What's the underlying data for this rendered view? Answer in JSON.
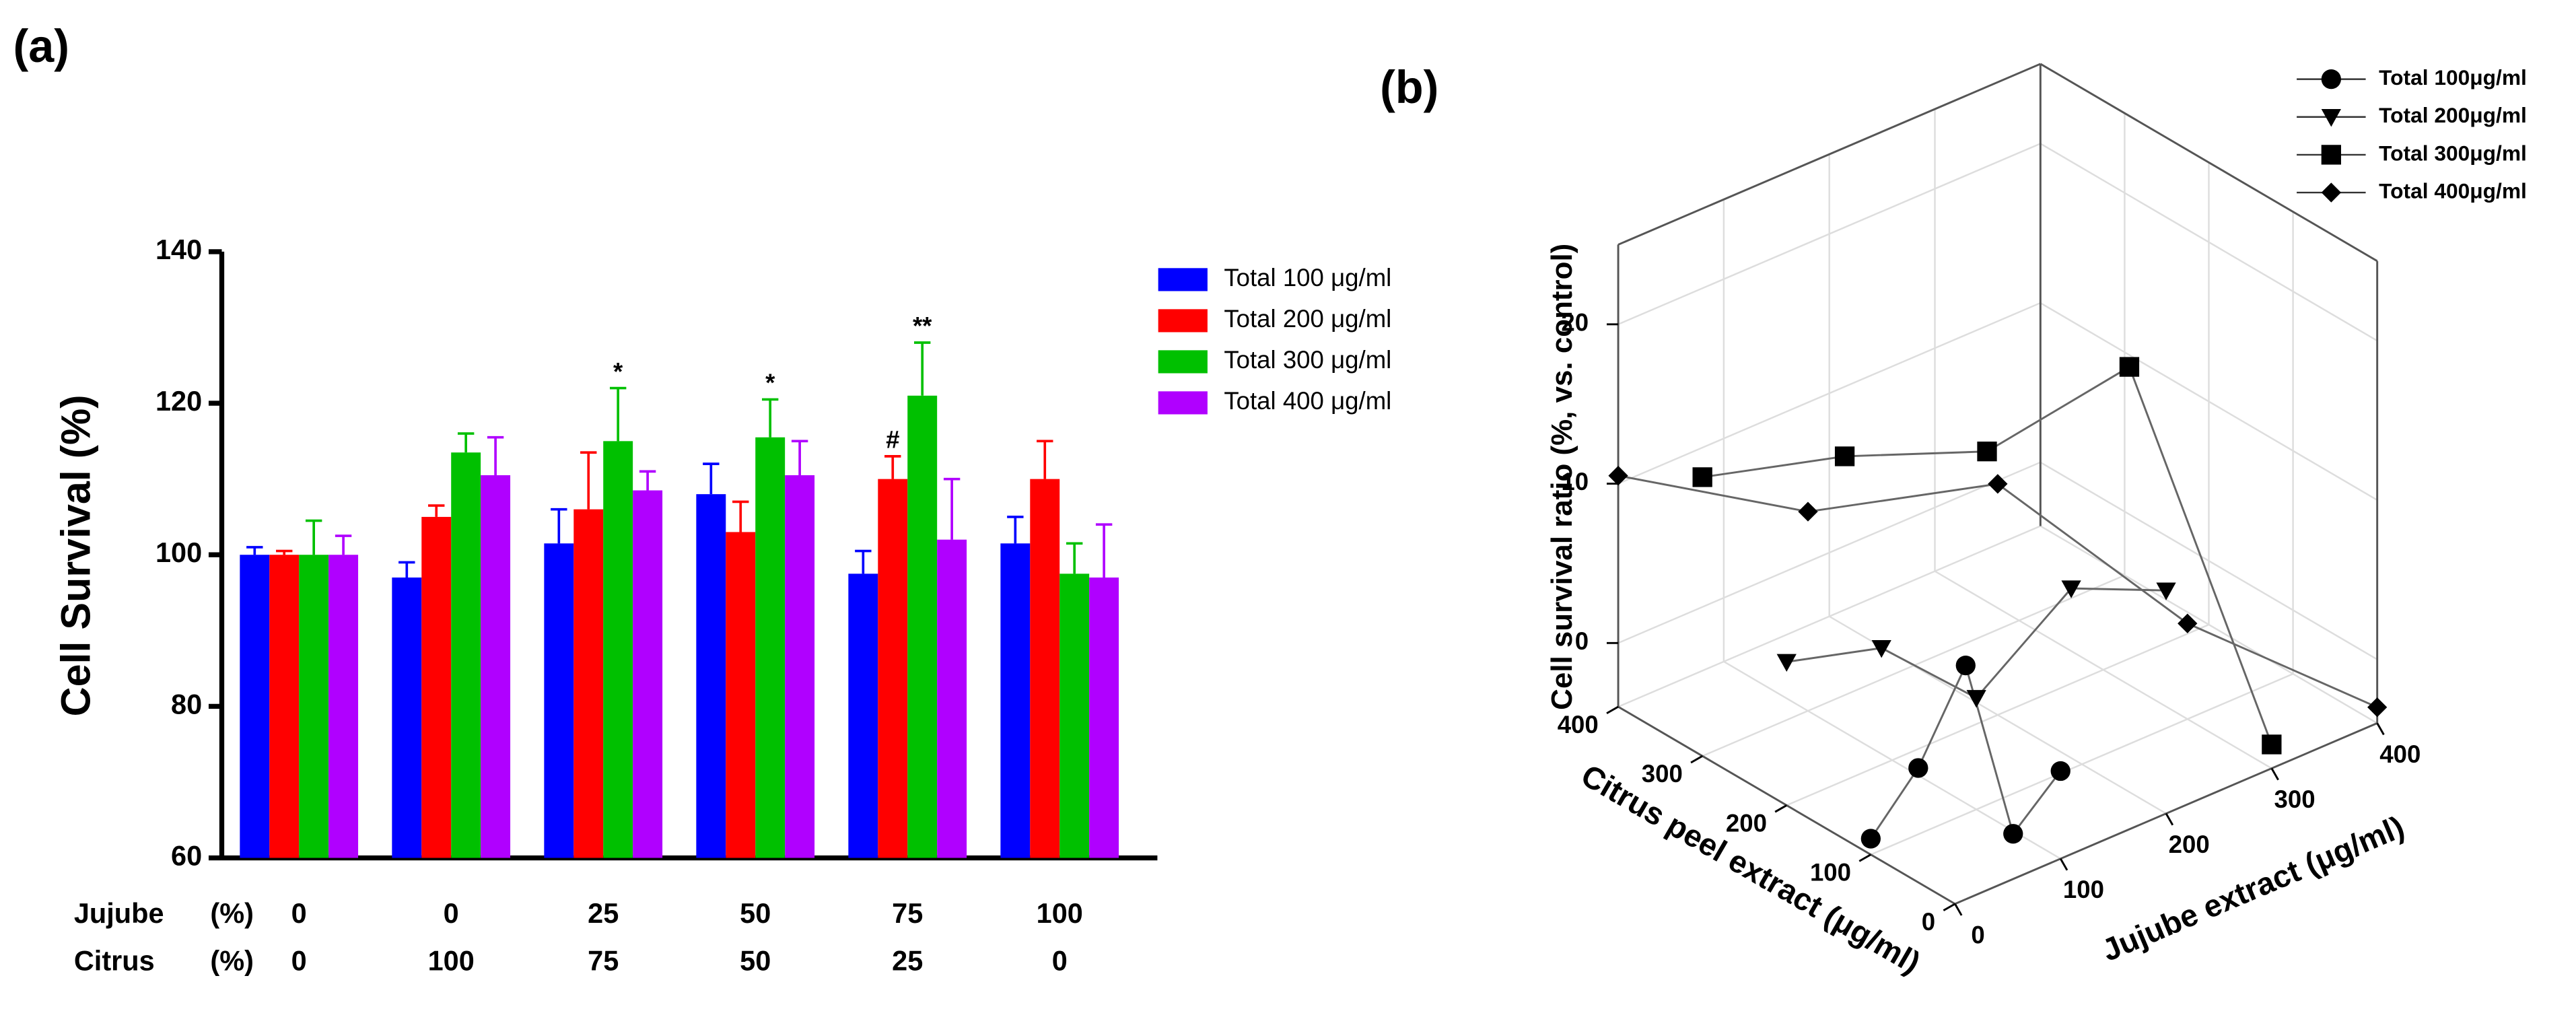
{
  "chart_data": [
    {
      "type": "bar",
      "panel": "(a)",
      "ylabel": "Cell Survival (%)",
      "ylim": [
        60,
        140
      ],
      "yticks": [
        60,
        80,
        100,
        120,
        140
      ],
      "category_rows": [
        {
          "name": "Jujube",
          "unit": "(%)",
          "labels": [
            0,
            0,
            25,
            50,
            75,
            100
          ]
        },
        {
          "name": "Citrus",
          "unit": "(%)",
          "labels": [
            0,
            100,
            75,
            50,
            25,
            0
          ]
        }
      ],
      "series": [
        {
          "name": "Total 100 μg/ml",
          "color": "#0000ff",
          "values": [
            100,
            97,
            101.5,
            108,
            97.5,
            101.5
          ],
          "errors": [
            1,
            2,
            4.5,
            4,
            3,
            3.5
          ]
        },
        {
          "name": "Total 200 μg/ml",
          "color": "#ff0000",
          "values": [
            100,
            105,
            106,
            103,
            110,
            110
          ],
          "errors": [
            0.5,
            1.5,
            7.5,
            4,
            3,
            5
          ],
          "annotations": [
            null,
            null,
            null,
            null,
            "#",
            null
          ]
        },
        {
          "name": "Total 300 μg/ml",
          "color": "#00c000",
          "values": [
            100,
            113.5,
            115,
            115.5,
            121,
            97.5
          ],
          "errors": [
            4.5,
            2.5,
            7,
            5,
            7,
            4
          ],
          "annotations": [
            null,
            null,
            "*",
            "*",
            "**",
            null
          ]
        },
        {
          "name": "Total 400 μg/ml",
          "color": "#b000ff",
          "values": [
            100,
            110.5,
            108.5,
            110.5,
            102,
            97
          ],
          "errors": [
            2.5,
            5,
            2.5,
            4.5,
            8,
            7
          ]
        }
      ]
    },
    {
      "type": "scatter3d",
      "panel": "(b)",
      "xlabel": "Jujube extract (μg/ml)",
      "ylabel": "Citrus peel extract (μg/ml)",
      "zlabel": "Cell survival ratio (%, vs. control)",
      "xlim": [
        0,
        400
      ],
      "xticks": [
        0,
        100,
        200,
        300,
        400
      ],
      "ylim": [
        0,
        400
      ],
      "yticks": [
        0,
        100,
        200,
        300,
        400
      ],
      "zlim": [
        -4,
        25
      ],
      "zticks": [
        0,
        10,
        20
      ],
      "grid": true,
      "series": [
        {
          "name": "Total 100μg/ml",
          "marker": "circle",
          "color": "#000000",
          "x": [
            0,
            25,
            50,
            75,
            100
          ],
          "y": [
            100,
            75,
            50,
            25,
            0
          ],
          "z": [
            -3,
            1.5,
            8,
            -2.5,
            1.5
          ]
        },
        {
          "name": "Total 200μg/ml",
          "marker": "triangle-down",
          "color": "#000000",
          "x": [
            0,
            50,
            100,
            150,
            200
          ],
          "y": [
            200,
            150,
            100,
            50,
            0
          ],
          "z": [
            5,
            6,
            3,
            10,
            10
          ]
        },
        {
          "name": "Total 300μg/ml",
          "marker": "square",
          "color": "#000000",
          "x": [
            0,
            75,
            150,
            225,
            300
          ],
          "y": [
            300,
            225,
            150,
            75,
            0
          ],
          "z": [
            13.5,
            15,
            15.5,
            21,
            -2.5
          ]
        },
        {
          "name": "Total 400μg/ml",
          "marker": "diamond",
          "color": "#000000",
          "x": [
            0,
            100,
            200,
            300,
            400
          ],
          "y": [
            400,
            300,
            200,
            100,
            0
          ],
          "z": [
            10.5,
            8.5,
            10.5,
            2,
            -3
          ]
        }
      ]
    }
  ]
}
